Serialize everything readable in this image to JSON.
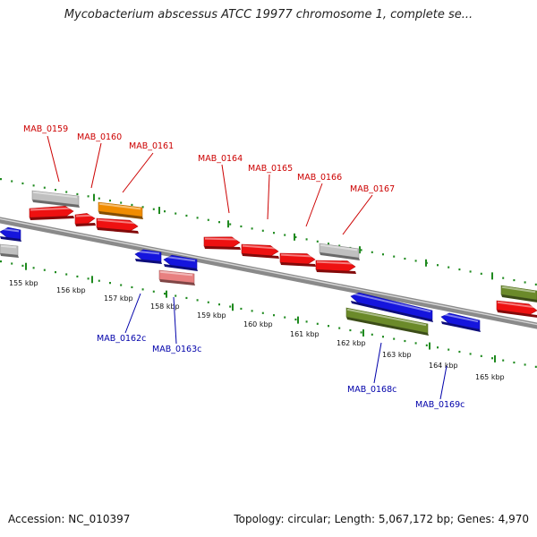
{
  "title": "Mycobacterium abscessus ATCC 19977 chromosome 1, complete se...",
  "footer": {
    "accession": "Accession: NC_010397",
    "topology": "Topology: circular; Length: 5,067,172 bp; Genes: 4,970"
  },
  "colors": {
    "backbone": "#8a8a8a",
    "ticks": "#1f8a1f",
    "forward_label": "#cc0000",
    "reverse_label": "#0000aa",
    "cds_red": "#ee1111",
    "cds_blue": "#1515dd",
    "gene_grey": "#c0c0c0",
    "gene_orange": "#f08c00",
    "gene_pink": "#e88080",
    "gene_olive": "#6b8a2a"
  },
  "scale": {
    "labels": [
      "155 kbp",
      "156 kbp",
      "157 kbp",
      "158 kbp",
      "159 kbp",
      "160 kbp",
      "161 kbp",
      "162 kbp",
      "163 kbp",
      "164 kbp",
      "165 kbp"
    ]
  },
  "forward_labels": [
    "MAB_0159",
    "MAB_0160",
    "MAB_0161",
    "MAB_0164",
    "MAB_0165",
    "MAB_0166",
    "MAB_0167"
  ],
  "reverse_labels": [
    "MAB_0162c",
    "MAB_0163c",
    "MAB_0168c",
    "MAB_0169c"
  ],
  "features": [
    {
      "color_key": "cds_red",
      "strand": "forward",
      "arrow": true
    },
    {
      "color_key": "cds_red",
      "strand": "forward",
      "arrow": true
    },
    {
      "color_key": "cds_red",
      "strand": "forward",
      "arrow": true
    },
    {
      "color_key": "cds_red",
      "strand": "forward",
      "arrow": true
    },
    {
      "color_key": "cds_red",
      "strand": "forward",
      "arrow": true
    },
    {
      "color_key": "cds_red",
      "strand": "forward",
      "arrow": true
    },
    {
      "color_key": "cds_red",
      "strand": "forward",
      "arrow": true
    },
    {
      "color_key": "cds_red",
      "strand": "forward",
      "arrow": true
    },
    {
      "color_key": "gene_grey",
      "strand": "forward",
      "arrow": false
    },
    {
      "color_key": "gene_orange",
      "strand": "forward",
      "arrow": false
    },
    {
      "color_key": "gene_grey",
      "strand": "forward",
      "arrow": false
    },
    {
      "color_key": "gene_olive",
      "strand": "forward",
      "arrow": false
    },
    {
      "color_key": "cds_blue",
      "strand": "reverse",
      "arrow": true
    },
    {
      "color_key": "cds_blue",
      "strand": "reverse",
      "arrow": true
    },
    {
      "color_key": "cds_blue",
      "strand": "reverse",
      "arrow": true
    },
    {
      "color_key": "cds_blue",
      "strand": "reverse",
      "arrow": true
    },
    {
      "color_key": "cds_blue",
      "strand": "reverse",
      "arrow": true
    },
    {
      "color_key": "gene_grey",
      "strand": "reverse",
      "arrow": false
    },
    {
      "color_key": "gene_pink",
      "strand": "reverse",
      "arrow": false
    },
    {
      "color_key": "gene_olive",
      "strand": "reverse",
      "arrow": false
    }
  ]
}
